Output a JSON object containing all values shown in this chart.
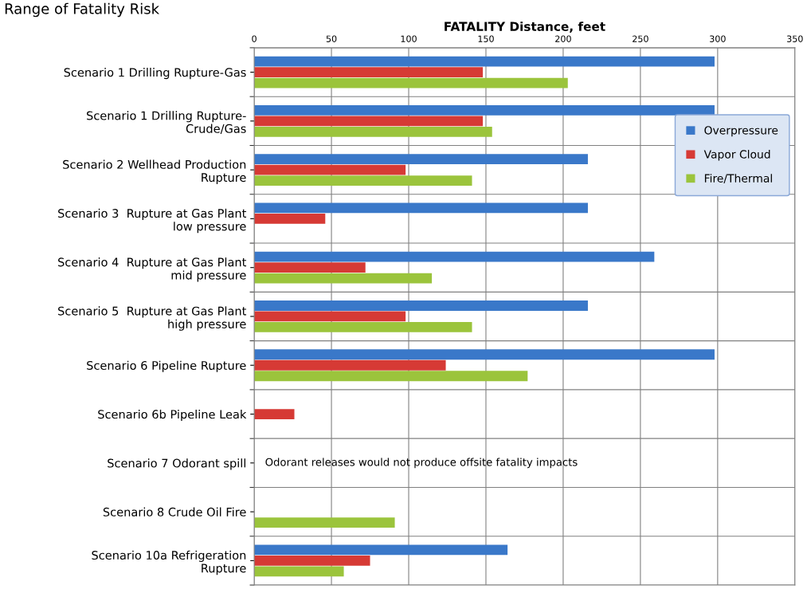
{
  "chart_data": {
    "type": "bar",
    "orientation": "horizontal",
    "annotations": [
      "Range of Fatality Risk",
      "Odorant releases would not produce offsite fatality impacts"
    ],
    "xlabel": "FATALITY Distance, feet",
    "categories": [
      "Scenario 1 Drilling Rupture-Gas",
      "Scenario 1 Drilling Rupture-\nCrude/Gas",
      "Scenario 2 Wellhead Production\nRupture",
      "Scenario 3  Rupture at Gas Plant\nlow pressure",
      "Scenario 4  Rupture at Gas Plant\nmid pressure",
      "Scenario 5  Rupture at Gas Plant\nhigh pressure",
      "Scenario 6 Pipeline Rupture",
      "Scenario 6b Pipeline Leak",
      "Scenario 7 Odorant spill",
      "Scenario 8 Crude Oil Fire",
      "Scenario 10a Refrigeration\nRupture"
    ],
    "series": [
      {
        "name": "Overpressure",
        "color": "#3a78c9",
        "values": [
          298,
          298,
          216,
          216,
          259,
          216,
          298,
          null,
          null,
          null,
          164
        ]
      },
      {
        "name": "Vapor Cloud",
        "color": "#d63a35",
        "values": [
          148,
          148,
          98,
          46,
          72,
          98,
          124,
          26,
          null,
          null,
          75
        ]
      },
      {
        "name": "Fire/Thermal",
        "color": "#9bc43c",
        "values": [
          203,
          154,
          141,
          null,
          115,
          141,
          177,
          null,
          null,
          91,
          58
        ]
      }
    ],
    "xlim": [
      0,
      350
    ],
    "xticks": [
      0,
      50,
      100,
      150,
      200,
      250,
      300,
      350
    ],
    "grid": true,
    "legend": "right"
  }
}
